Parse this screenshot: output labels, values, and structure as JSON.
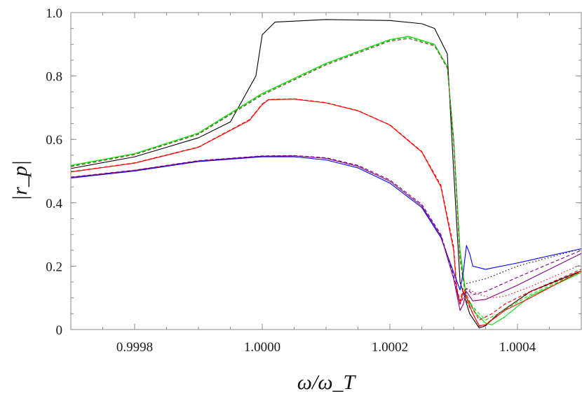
{
  "chart_data": {
    "type": "line",
    "title": "",
    "xlabel": "ω/ω_T",
    "ylabel": "|r_p|",
    "xlim": [
      0.9997,
      1.0005
    ],
    "ylim": [
      0.0,
      1.0
    ],
    "grid": false,
    "legend": "none",
    "xticks": [
      {
        "value": 0.9998,
        "label": "0.9998"
      },
      {
        "value": 1.0,
        "label": "1.0000"
      },
      {
        "value": 1.0002,
        "label": "1.0002"
      },
      {
        "value": 1.0004,
        "label": "1.0004"
      }
    ],
    "yticks": [
      {
        "value": 0.0,
        "label": "0"
      },
      {
        "value": 0.2,
        "label": "0.2"
      },
      {
        "value": 0.4,
        "label": "0.4"
      },
      {
        "value": 0.6,
        "label": "0.6"
      },
      {
        "value": 0.8,
        "label": "0.8"
      },
      {
        "value": 1.0,
        "label": "1.0"
      }
    ],
    "series": [
      {
        "color": "#000000",
        "style": "solid",
        "points": [
          [
            0.9997,
            0.508
          ],
          [
            0.9998,
            0.545
          ],
          [
            0.9999,
            0.605
          ],
          [
            0.99995,
            0.655
          ],
          [
            0.99999,
            0.8
          ],
          [
            1.0,
            0.93
          ],
          [
            1.00002,
            0.97
          ],
          [
            1.0001,
            0.978
          ],
          [
            1.0002,
            0.975
          ],
          [
            1.00025,
            0.965
          ],
          [
            1.00027,
            0.95
          ],
          [
            1.00029,
            0.87
          ],
          [
            1.0003,
            0.5
          ],
          [
            1.00031,
            0.15
          ],
          [
            1.000325,
            0.05
          ],
          [
            1.00034,
            0.005
          ],
          [
            1.00035,
            0.012
          ],
          [
            1.00037,
            0.05
          ],
          [
            1.00042,
            0.12
          ],
          [
            1.0005,
            0.185
          ]
        ]
      },
      {
        "color": "#00dd00",
        "style": "solid",
        "points": [
          [
            0.9997,
            0.518
          ],
          [
            0.9998,
            0.555
          ],
          [
            0.9999,
            0.62
          ],
          [
            1.0,
            0.745
          ],
          [
            1.0001,
            0.84
          ],
          [
            1.0002,
            0.915
          ],
          [
            1.00023,
            0.925
          ],
          [
            1.00027,
            0.9
          ],
          [
            1.00029,
            0.83
          ],
          [
            1.0003,
            0.6
          ],
          [
            1.00031,
            0.25
          ],
          [
            1.00032,
            0.1
          ],
          [
            1.000335,
            0.05
          ],
          [
            1.00035,
            0.02
          ],
          [
            1.00036,
            0.015
          ],
          [
            1.00038,
            0.04
          ],
          [
            1.00042,
            0.105
          ],
          [
            1.0005,
            0.18
          ]
        ]
      },
      {
        "color": "#00dd00",
        "style": "dashed",
        "points": [
          [
            0.9997,
            0.516
          ],
          [
            0.9998,
            0.553
          ],
          [
            0.9999,
            0.618
          ],
          [
            1.0,
            0.743
          ],
          [
            1.0001,
            0.838
          ],
          [
            1.0002,
            0.913
          ],
          [
            1.00023,
            0.922
          ],
          [
            1.00027,
            0.898
          ],
          [
            1.00029,
            0.828
          ],
          [
            1.0003,
            0.58
          ],
          [
            1.00031,
            0.23
          ],
          [
            1.00032,
            0.1
          ],
          [
            1.000335,
            0.06
          ],
          [
            1.00035,
            0.03
          ],
          [
            1.00037,
            0.05
          ],
          [
            1.00042,
            0.11
          ],
          [
            1.0005,
            0.182
          ]
        ]
      },
      {
        "color": "#8b3a2b",
        "style": "dashed",
        "points": [
          [
            0.9997,
            0.514
          ],
          [
            0.9998,
            0.552
          ],
          [
            0.9999,
            0.616
          ],
          [
            1.0,
            0.74
          ],
          [
            1.0001,
            0.835
          ],
          [
            1.0002,
            0.91
          ],
          [
            1.00023,
            0.918
          ],
          [
            1.00027,
            0.895
          ],
          [
            1.00029,
            0.825
          ],
          [
            1.0003,
            0.6
          ],
          [
            1.00031,
            0.22
          ],
          [
            1.00032,
            0.09
          ],
          [
            1.00034,
            0.01
          ],
          [
            1.00035,
            0.015
          ],
          [
            1.00037,
            0.05
          ],
          [
            1.00042,
            0.118
          ],
          [
            1.0005,
            0.183
          ]
        ]
      },
      {
        "color": "#ff0000",
        "style": "solid",
        "points": [
          [
            0.9997,
            0.497
          ],
          [
            0.9998,
            0.525
          ],
          [
            0.9999,
            0.575
          ],
          [
            0.99998,
            0.66
          ],
          [
            1.0,
            0.71
          ],
          [
            1.00001,
            0.725
          ],
          [
            1.00005,
            0.727
          ],
          [
            1.0001,
            0.715
          ],
          [
            1.00015,
            0.69
          ],
          [
            1.0002,
            0.645
          ],
          [
            1.00025,
            0.56
          ],
          [
            1.00028,
            0.45
          ],
          [
            1.0003,
            0.25
          ],
          [
            1.000305,
            0.12
          ],
          [
            1.00031,
            0.08
          ],
          [
            1.000315,
            0.12
          ],
          [
            1.00032,
            0.1
          ],
          [
            1.00033,
            0.05
          ],
          [
            1.00034,
            0.012
          ],
          [
            1.00035,
            0.015
          ],
          [
            1.00038,
            0.06
          ],
          [
            1.00042,
            0.1
          ],
          [
            1.0005,
            0.185
          ]
        ]
      },
      {
        "color": "#ff0000",
        "style": "dashed",
        "points": [
          [
            0.9997,
            0.498
          ],
          [
            0.9998,
            0.526
          ],
          [
            0.9999,
            0.576
          ],
          [
            0.99998,
            0.662
          ],
          [
            1.0,
            0.712
          ],
          [
            1.00001,
            0.726
          ],
          [
            1.00005,
            0.728
          ],
          [
            1.0001,
            0.716
          ],
          [
            1.00015,
            0.691
          ],
          [
            1.0002,
            0.646
          ],
          [
            1.00025,
            0.562
          ],
          [
            1.00028,
            0.455
          ],
          [
            1.0003,
            0.26
          ],
          [
            1.000305,
            0.13
          ],
          [
            1.00031,
            0.09
          ],
          [
            1.000315,
            0.13
          ],
          [
            1.00032,
            0.11
          ],
          [
            1.00033,
            0.065
          ],
          [
            1.00034,
            0.03
          ],
          [
            1.00036,
            0.05
          ],
          [
            1.00038,
            0.08
          ],
          [
            1.00042,
            0.12
          ],
          [
            1.0005,
            0.19
          ]
        ]
      },
      {
        "color": "#ff0000",
        "style": "dotted",
        "points": [
          [
            1.00032,
            0.13
          ],
          [
            1.00034,
            0.11
          ],
          [
            1.00036,
            0.1
          ],
          [
            1.00038,
            0.105
          ],
          [
            1.00042,
            0.135
          ],
          [
            1.0005,
            0.205
          ]
        ]
      },
      {
        "color": "#0000ff",
        "style": "solid",
        "points": [
          [
            0.9997,
            0.478
          ],
          [
            0.9998,
            0.5
          ],
          [
            0.9999,
            0.53
          ],
          [
            1.0,
            0.545
          ],
          [
            1.00005,
            0.545
          ],
          [
            1.0001,
            0.535
          ],
          [
            1.00015,
            0.51
          ],
          [
            1.0002,
            0.462
          ],
          [
            1.00025,
            0.385
          ],
          [
            1.00028,
            0.29
          ],
          [
            1.0003,
            0.18
          ],
          [
            1.00031,
            0.125
          ],
          [
            1.000315,
            0.18
          ],
          [
            1.00032,
            0.265
          ],
          [
            1.000325,
            0.24
          ],
          [
            1.00033,
            0.2
          ],
          [
            1.00035,
            0.19
          ],
          [
            1.0004,
            0.21
          ],
          [
            1.0005,
            0.255
          ]
        ]
      },
      {
        "color": "#800080",
        "style": "solid",
        "points": [
          [
            0.9997,
            0.48
          ],
          [
            0.9998,
            0.502
          ],
          [
            0.9999,
            0.532
          ],
          [
            1.0,
            0.547
          ],
          [
            1.00005,
            0.548
          ],
          [
            1.0001,
            0.54
          ],
          [
            1.00015,
            0.515
          ],
          [
            1.0002,
            0.468
          ],
          [
            1.00025,
            0.39
          ],
          [
            1.00028,
            0.295
          ],
          [
            1.0003,
            0.16
          ],
          [
            1.00031,
            0.06
          ],
          [
            1.000315,
            0.08
          ],
          [
            1.00032,
            0.12
          ],
          [
            1.00033,
            0.09
          ],
          [
            1.00035,
            0.095
          ],
          [
            1.0004,
            0.14
          ],
          [
            1.0005,
            0.24
          ]
        ]
      },
      {
        "color": "#800080",
        "style": "dashed",
        "points": [
          [
            0.9997,
            0.481
          ],
          [
            0.9998,
            0.503
          ],
          [
            0.9999,
            0.533
          ],
          [
            1.0,
            0.548
          ],
          [
            1.00005,
            0.549
          ],
          [
            1.0001,
            0.542
          ],
          [
            1.00015,
            0.518
          ],
          [
            1.0002,
            0.472
          ],
          [
            1.00025,
            0.395
          ],
          [
            1.00028,
            0.3
          ],
          [
            1.0003,
            0.17
          ],
          [
            1.00031,
            0.08
          ],
          [
            1.000315,
            0.1
          ],
          [
            1.00032,
            0.13
          ],
          [
            1.00033,
            0.11
          ],
          [
            1.00035,
            0.12
          ],
          [
            1.0004,
            0.165
          ],
          [
            1.0005,
            0.25
          ]
        ]
      },
      {
        "color": "#000000",
        "style": "dotted",
        "points": [
          [
            1.00032,
            0.145
          ],
          [
            1.00035,
            0.16
          ],
          [
            1.0004,
            0.2
          ],
          [
            1.0005,
            0.255
          ]
        ]
      }
    ]
  }
}
